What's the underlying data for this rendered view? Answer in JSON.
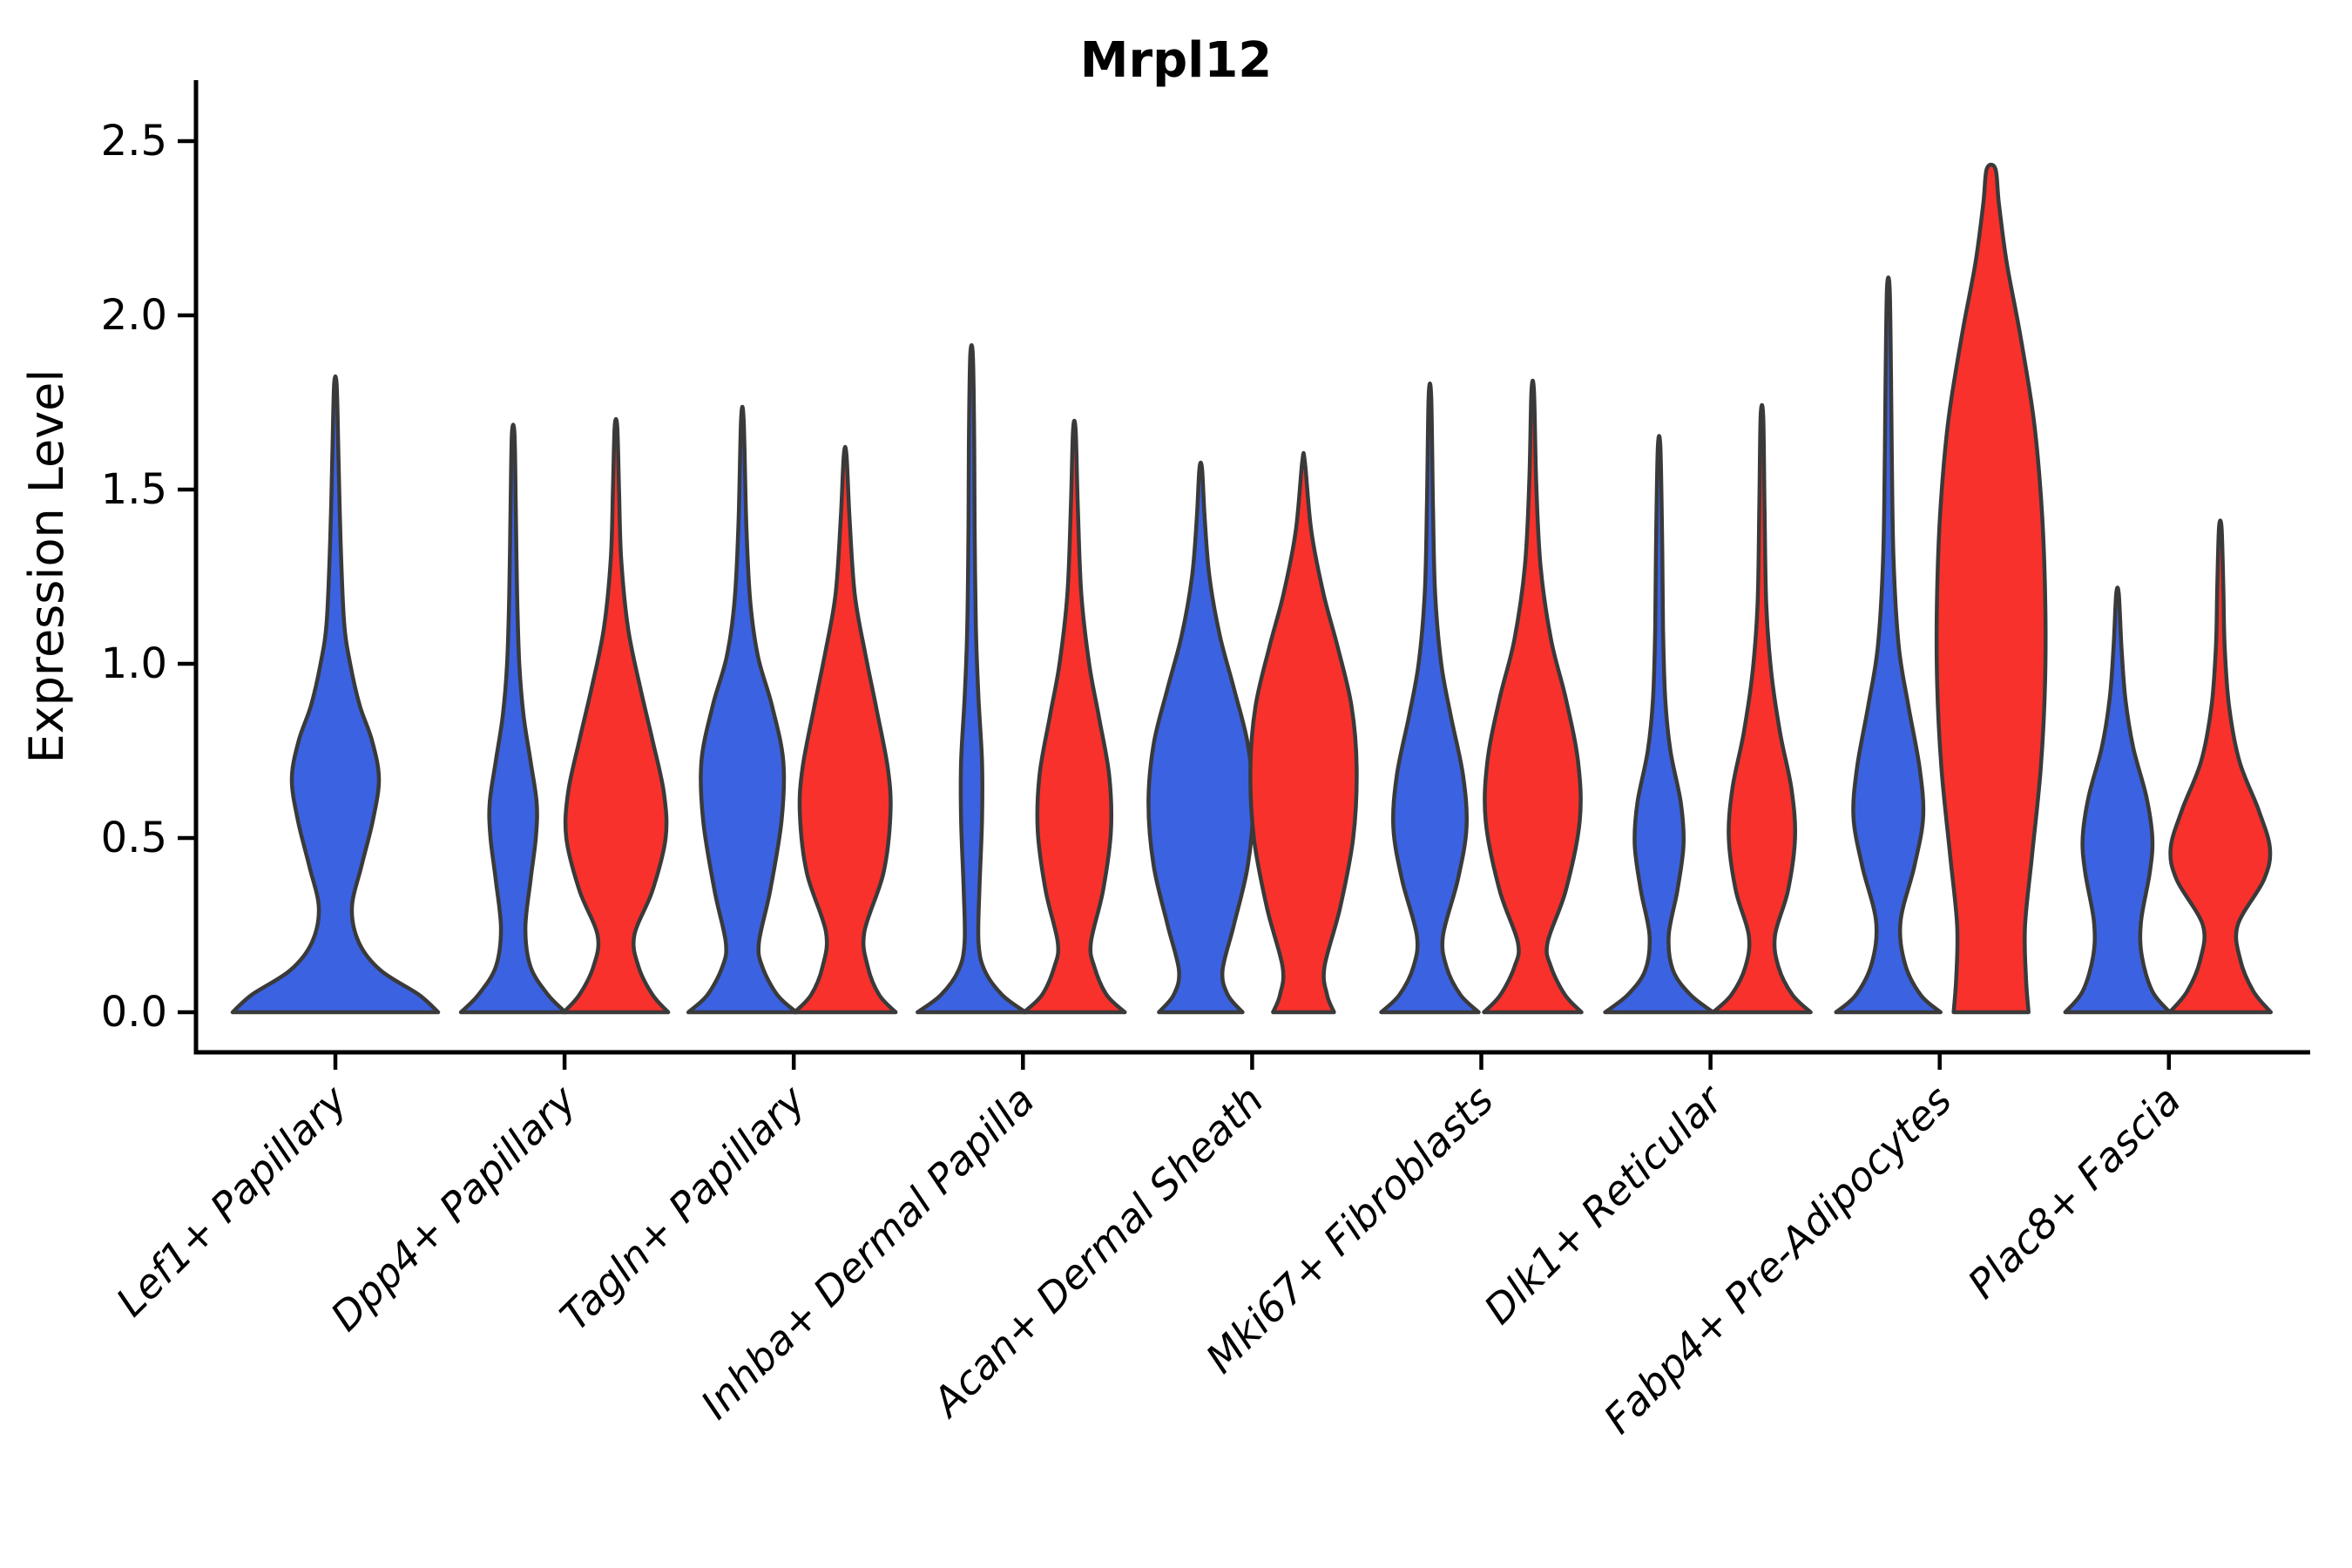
{
  "figure": {
    "title": "Mrpl12",
    "ylabel": "Expression Level",
    "ytick_labels": [
      "0.0",
      "0.5",
      "1.0",
      "1.5",
      "2.0",
      "2.5"
    ]
  },
  "colors": {
    "blue": "#3B62E0",
    "red": "#F8312C",
    "outline": "#3A3A3A",
    "axis": "#000000",
    "background": "#FFFFFF"
  },
  "chart_data": {
    "type": "violin",
    "title": "Mrpl12",
    "xlabel": "",
    "ylabel": "Expression Level",
    "ylim": [
      0,
      2.5
    ],
    "yticks": [
      0,
      0.5,
      1.0,
      1.5,
      2.0,
      2.5
    ],
    "grid": false,
    "legend": "none",
    "split_violins": true,
    "categories": [
      "Lef1+ Papillary",
      "Dpp4+ Papillary",
      "Tagln+ Papillary",
      "Inhba+ Dermal Papilla",
      "Acan+ Dermal Sheath",
      "Mki67+ Fibroblasts",
      "Dlk1+ Reticular",
      "Fabp4+ Pre-Adipocytes",
      "Plac8+ Fascia"
    ],
    "series": [
      {
        "name": "blue",
        "color": "#3B62E0",
        "max_expression": [
          1.8,
          1.66,
          1.7,
          1.89,
          1.56,
          1.77,
          1.62,
          2.08,
          1.2
        ]
      },
      {
        "name": "red",
        "color": "#F8312C",
        "max_expression": [
          null,
          1.68,
          1.6,
          1.67,
          1.58,
          1.78,
          1.71,
          2.42,
          1.39
        ]
      }
    ],
    "violins": [
      {
        "category": 0,
        "series": "blue",
        "side": "center",
        "top": 1.8,
        "profile": [
          [
            0,
            118
          ],
          [
            0.05,
            96
          ],
          [
            0.12,
            52
          ],
          [
            0.2,
            27
          ],
          [
            0.3,
            19
          ],
          [
            0.42,
            30
          ],
          [
            0.55,
            43
          ],
          [
            0.67,
            50
          ],
          [
            0.78,
            42
          ],
          [
            0.88,
            28
          ],
          [
            1.0,
            17
          ],
          [
            1.12,
            10
          ],
          [
            1.35,
            6
          ],
          [
            1.6,
            3.5
          ],
          [
            1.8,
            1.5
          ]
        ]
      },
      {
        "category": 1,
        "series": "blue",
        "side": "left",
        "top": 1.66,
        "profile": [
          [
            0,
            60
          ],
          [
            0.05,
            40
          ],
          [
            0.13,
            20
          ],
          [
            0.24,
            14
          ],
          [
            0.38,
            20
          ],
          [
            0.5,
            26
          ],
          [
            0.6,
            27
          ],
          [
            0.72,
            20
          ],
          [
            0.85,
            12
          ],
          [
            1.0,
            7
          ],
          [
            1.2,
            4.5
          ],
          [
            1.45,
            3
          ],
          [
            1.66,
            1.5
          ]
        ]
      },
      {
        "category": 1,
        "series": "red",
        "side": "right",
        "top": 1.68,
        "profile": [
          [
            0,
            60
          ],
          [
            0.05,
            42
          ],
          [
            0.13,
            26
          ],
          [
            0.22,
            21
          ],
          [
            0.35,
            42
          ],
          [
            0.5,
            57
          ],
          [
            0.63,
            55
          ],
          [
            0.78,
            42
          ],
          [
            0.93,
            28
          ],
          [
            1.1,
            14
          ],
          [
            1.3,
            6
          ],
          [
            1.5,
            3.5
          ],
          [
            1.68,
            1.5
          ]
        ]
      },
      {
        "category": 2,
        "series": "blue",
        "side": "left",
        "top": 1.7,
        "profile": [
          [
            0,
            62
          ],
          [
            0.05,
            40
          ],
          [
            0.13,
            23
          ],
          [
            0.2,
            19
          ],
          [
            0.35,
            32
          ],
          [
            0.55,
            45
          ],
          [
            0.72,
            47
          ],
          [
            0.88,
            34
          ],
          [
            1.02,
            18
          ],
          [
            1.18,
            9
          ],
          [
            1.4,
            4.5
          ],
          [
            1.7,
            1.5
          ]
        ]
      },
      {
        "category": 2,
        "series": "red",
        "side": "right",
        "top": 1.6,
        "profile": [
          [
            0,
            58
          ],
          [
            0.05,
            39
          ],
          [
            0.13,
            26
          ],
          [
            0.23,
            22
          ],
          [
            0.4,
            44
          ],
          [
            0.57,
            52
          ],
          [
            0.7,
            49
          ],
          [
            0.87,
            36
          ],
          [
            1.03,
            23
          ],
          [
            1.2,
            11
          ],
          [
            1.42,
            5
          ],
          [
            1.6,
            1.5
          ]
        ]
      },
      {
        "category": 3,
        "series": "blue",
        "side": "left",
        "top": 1.885,
        "profile": [
          [
            0,
            62
          ],
          [
            0.05,
            35
          ],
          [
            0.12,
            15
          ],
          [
            0.2,
            8
          ],
          [
            0.35,
            9
          ],
          [
            0.55,
            12
          ],
          [
            0.72,
            12
          ],
          [
            0.9,
            8
          ],
          [
            1.1,
            5
          ],
          [
            1.4,
            3.5
          ],
          [
            1.65,
            3
          ],
          [
            1.885,
            1.5
          ]
        ]
      },
      {
        "category": 3,
        "series": "red",
        "side": "right",
        "top": 1.67,
        "profile": [
          [
            0,
            58
          ],
          [
            0.05,
            37
          ],
          [
            0.13,
            23
          ],
          [
            0.2,
            19
          ],
          [
            0.35,
            33
          ],
          [
            0.52,
            42
          ],
          [
            0.68,
            40
          ],
          [
            0.85,
            28
          ],
          [
            1.0,
            17
          ],
          [
            1.2,
            8
          ],
          [
            1.45,
            4
          ],
          [
            1.67,
            1.5
          ]
        ]
      },
      {
        "category": 4,
        "series": "blue",
        "side": "left",
        "top": 1.56,
        "profile": [
          [
            0,
            48
          ],
          [
            0.05,
            31
          ],
          [
            0.12,
            25
          ],
          [
            0.25,
            38
          ],
          [
            0.42,
            54
          ],
          [
            0.6,
            60
          ],
          [
            0.77,
            54
          ],
          [
            0.93,
            38
          ],
          [
            1.08,
            22
          ],
          [
            1.25,
            10
          ],
          [
            1.42,
            4.5
          ],
          [
            1.56,
            1.5
          ]
        ]
      },
      {
        "category": 4,
        "series": "red",
        "side": "right",
        "top": 1.58,
        "profile": [
          [
            0,
            35
          ],
          [
            0.05,
            27
          ],
          [
            0.13,
            24
          ],
          [
            0.3,
            42
          ],
          [
            0.5,
            57
          ],
          [
            0.7,
            61
          ],
          [
            0.88,
            55
          ],
          [
            1.05,
            39
          ],
          [
            1.2,
            23
          ],
          [
            1.38,
            9
          ],
          [
            1.58,
            1.5
          ]
        ]
      },
      {
        "category": 5,
        "series": "blue",
        "side": "left",
        "top": 1.765,
        "profile": [
          [
            0,
            56
          ],
          [
            0.05,
            35
          ],
          [
            0.13,
            19
          ],
          [
            0.22,
            15
          ],
          [
            0.38,
            32
          ],
          [
            0.53,
            42
          ],
          [
            0.68,
            38
          ],
          [
            0.85,
            24
          ],
          [
            1.0,
            13
          ],
          [
            1.2,
            6
          ],
          [
            1.45,
            3.5
          ],
          [
            1.765,
            1.5
          ]
        ]
      },
      {
        "category": 5,
        "series": "red",
        "side": "right",
        "top": 1.78,
        "profile": [
          [
            0,
            56
          ],
          [
            0.05,
            37
          ],
          [
            0.13,
            21
          ],
          [
            0.2,
            17
          ],
          [
            0.35,
            38
          ],
          [
            0.55,
            54
          ],
          [
            0.72,
            52
          ],
          [
            0.9,
            38
          ],
          [
            1.07,
            21
          ],
          [
            1.28,
            9
          ],
          [
            1.52,
            4
          ],
          [
            1.78,
            1.5
          ]
        ]
      },
      {
        "category": 6,
        "series": "blue",
        "side": "left",
        "top": 1.62,
        "profile": [
          [
            0,
            62
          ],
          [
            0.05,
            36
          ],
          [
            0.12,
            16
          ],
          [
            0.22,
            11
          ],
          [
            0.35,
            21
          ],
          [
            0.48,
            28
          ],
          [
            0.6,
            25
          ],
          [
            0.75,
            13
          ],
          [
            0.9,
            7
          ],
          [
            1.1,
            4.5
          ],
          [
            1.35,
            3.5
          ],
          [
            1.62,
            1.5
          ]
        ]
      },
      {
        "category": 6,
        "series": "red",
        "side": "right",
        "top": 1.71,
        "profile": [
          [
            0,
            56
          ],
          [
            0.05,
            35
          ],
          [
            0.13,
            19
          ],
          [
            0.22,
            15
          ],
          [
            0.35,
            30
          ],
          [
            0.5,
            38
          ],
          [
            0.64,
            34
          ],
          [
            0.8,
            21
          ],
          [
            0.97,
            11
          ],
          [
            1.17,
            5
          ],
          [
            1.45,
            3
          ],
          [
            1.71,
            1.5
          ]
        ]
      },
      {
        "category": 7,
        "series": "blue",
        "side": "left",
        "top": 2.08,
        "profile": [
          [
            0,
            60
          ],
          [
            0.05,
            37
          ],
          [
            0.14,
            19
          ],
          [
            0.26,
            14
          ],
          [
            0.42,
            30
          ],
          [
            0.56,
            40
          ],
          [
            0.7,
            36
          ],
          [
            0.88,
            23
          ],
          [
            1.05,
            12
          ],
          [
            1.3,
            6
          ],
          [
            1.6,
            4
          ],
          [
            1.85,
            3
          ],
          [
            2.08,
            1.5
          ]
        ]
      },
      {
        "category": 7,
        "series": "red",
        "side": "right",
        "top": 2.42,
        "profile": [
          [
            0,
            43
          ],
          [
            0.1,
            40
          ],
          [
            0.25,
            39
          ],
          [
            0.45,
            47
          ],
          [
            0.7,
            57
          ],
          [
            0.95,
            62
          ],
          [
            1.2,
            62
          ],
          [
            1.45,
            58
          ],
          [
            1.7,
            49
          ],
          [
            1.95,
            33
          ],
          [
            2.15,
            18
          ],
          [
            2.32,
            9
          ],
          [
            2.42,
            5
          ]
        ]
      },
      {
        "category": 8,
        "series": "blue",
        "side": "left",
        "top": 1.2,
        "profile": [
          [
            0,
            60
          ],
          [
            0.06,
            40
          ],
          [
            0.16,
            28
          ],
          [
            0.26,
            27
          ],
          [
            0.4,
            37
          ],
          [
            0.5,
            40
          ],
          [
            0.62,
            33
          ],
          [
            0.76,
            18
          ],
          [
            0.9,
            9
          ],
          [
            1.05,
            4.5
          ],
          [
            1.2,
            1.5
          ]
        ]
      },
      {
        "category": 8,
        "series": "red",
        "side": "right",
        "top": 1.39,
        "profile": [
          [
            0,
            58
          ],
          [
            0.06,
            38
          ],
          [
            0.15,
            23
          ],
          [
            0.25,
            20
          ],
          [
            0.38,
            50
          ],
          [
            0.47,
            57
          ],
          [
            0.58,
            44
          ],
          [
            0.72,
            22
          ],
          [
            0.88,
            10
          ],
          [
            1.05,
            5
          ],
          [
            1.22,
            3.5
          ],
          [
            1.39,
            1.5
          ]
        ]
      }
    ]
  }
}
